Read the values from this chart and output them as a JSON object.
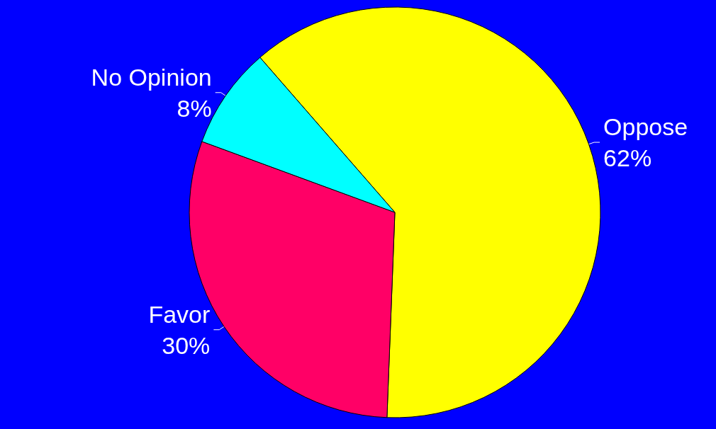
{
  "chart_data": {
    "type": "pie",
    "categories": [
      "Oppose",
      "Favor",
      "No Opinion"
    ],
    "values": [
      62,
      30,
      8
    ],
    "colors": [
      "#ffff00",
      "#ff0066",
      "#00ffff"
    ],
    "value_labels": [
      "62%",
      "30%",
      "8%"
    ],
    "legend": false
  }
}
